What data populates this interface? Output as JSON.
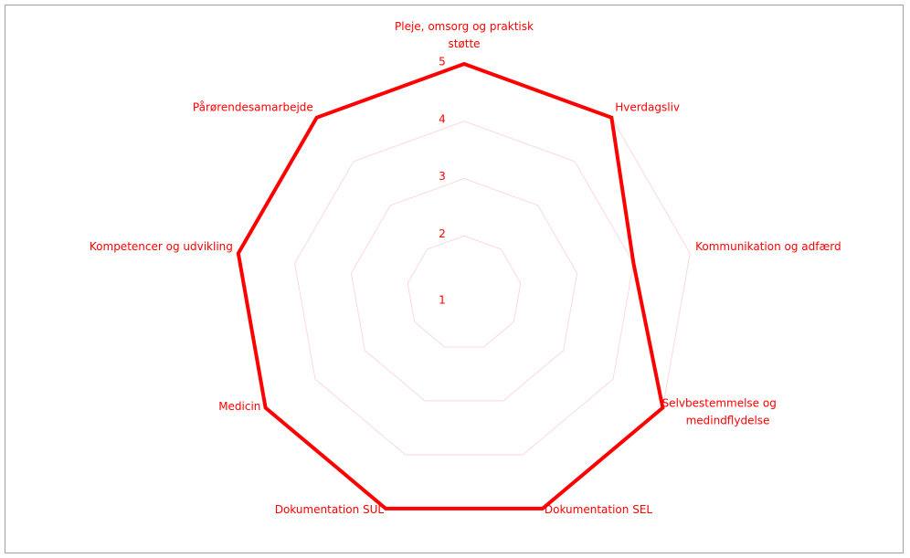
{
  "chart_data": {
    "type": "radar",
    "categories": [
      "Pleje, omsorg og praktisk støtte",
      "Hverdagsliv",
      "Kommunikation og adfærd",
      "Selvbestemmelse og medindflydelse",
      "Dokumentation SEL",
      "Dokumentation SUL",
      "Medicin",
      "Kompetencer og udvikling",
      "Pårørendesamarbejde"
    ],
    "values": [
      5,
      5,
      4,
      5,
      5,
      5,
      5,
      5,
      5
    ],
    "color": "#ff0000",
    "ylim": [
      1,
      5
    ],
    "yticks": [
      1,
      2,
      3,
      4,
      5
    ],
    "grid": true
  }
}
